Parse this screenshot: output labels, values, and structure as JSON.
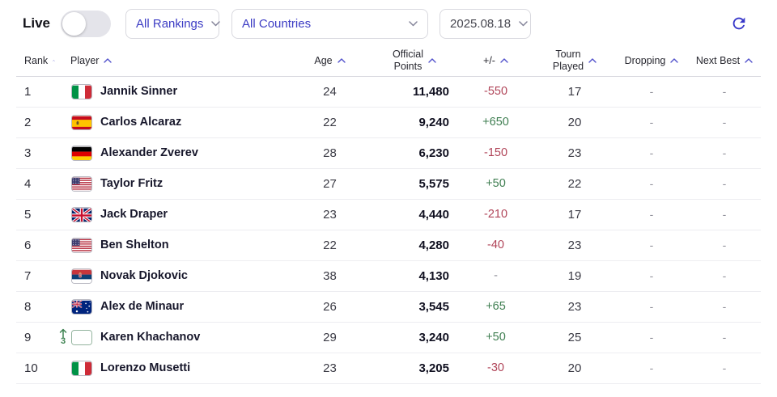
{
  "controls": {
    "live_label": "Live",
    "live_toggle_state": "off",
    "rankings_dropdown": "All Rankings",
    "countries_dropdown": "All Countries",
    "date_dropdown": "2025.08.18",
    "icons": {
      "dropdown_chevron": "chevron-down-icon",
      "refresh": "refresh-icon",
      "sort": "caret-up-icon",
      "rank_up": "arrow-up-icon"
    }
  },
  "colors": {
    "accent": "#3c3cc4",
    "positive": "#3f7e51",
    "negative": "#b04458",
    "rank_up_green": "#3f8352"
  },
  "table": {
    "columns": [
      {
        "key": "rank",
        "label": "Rank"
      },
      {
        "key": "player",
        "label": "Player"
      },
      {
        "key": "age",
        "label": "Age"
      },
      {
        "key": "points",
        "label": "Official\nPoints"
      },
      {
        "key": "change",
        "label": "+/-"
      },
      {
        "key": "tourn",
        "label": "Tourn\nPlayed"
      },
      {
        "key": "dropping",
        "label": "Dropping"
      },
      {
        "key": "nextbest",
        "label": "Next Best"
      }
    ],
    "rows": [
      {
        "rank": "1",
        "country": "ITA",
        "player": "Jannik Sinner",
        "age": "24",
        "points": "11,480",
        "change": "-550",
        "tourn": "17",
        "dropping": "-",
        "nextbest": "-"
      },
      {
        "rank": "2",
        "country": "ESP",
        "player": "Carlos Alcaraz",
        "age": "22",
        "points": "9,240",
        "change": "+650",
        "tourn": "20",
        "dropping": "-",
        "nextbest": "-"
      },
      {
        "rank": "3",
        "country": "GER",
        "player": "Alexander Zverev",
        "age": "28",
        "points": "6,230",
        "change": "-150",
        "tourn": "23",
        "dropping": "-",
        "nextbest": "-"
      },
      {
        "rank": "4",
        "country": "USA",
        "player": "Taylor Fritz",
        "age": "27",
        "points": "5,575",
        "change": "+50",
        "tourn": "22",
        "dropping": "-",
        "nextbest": "-"
      },
      {
        "rank": "5",
        "country": "GBR",
        "player": "Jack Draper",
        "age": "23",
        "points": "4,440",
        "change": "-210",
        "tourn": "17",
        "dropping": "-",
        "nextbest": "-"
      },
      {
        "rank": "6",
        "country": "USA",
        "player": "Ben Shelton",
        "age": "22",
        "points": "4,280",
        "change": "-40",
        "tourn": "23",
        "dropping": "-",
        "nextbest": "-"
      },
      {
        "rank": "7",
        "country": "SRB",
        "player": "Novak Djokovic",
        "age": "38",
        "points": "4,130",
        "change": "-",
        "tourn": "19",
        "dropping": "-",
        "nextbest": "-"
      },
      {
        "rank": "8",
        "country": "AUS",
        "player": "Alex de Minaur",
        "age": "26",
        "points": "3,545",
        "change": "+65",
        "tourn": "23",
        "dropping": "-",
        "nextbest": "-"
      },
      {
        "rank": "9",
        "country": "NEUTRAL",
        "player": "Karen Khachanov",
        "age": "29",
        "points": "3,240",
        "change": "+50",
        "tourn": "25",
        "dropping": "-",
        "nextbest": "-",
        "move_up": "3"
      },
      {
        "rank": "10",
        "country": "ITA",
        "player": "Lorenzo Musetti",
        "age": "23",
        "points": "3,205",
        "change": "-30",
        "tourn": "20",
        "dropping": "-",
        "nextbest": "-"
      }
    ]
  }
}
